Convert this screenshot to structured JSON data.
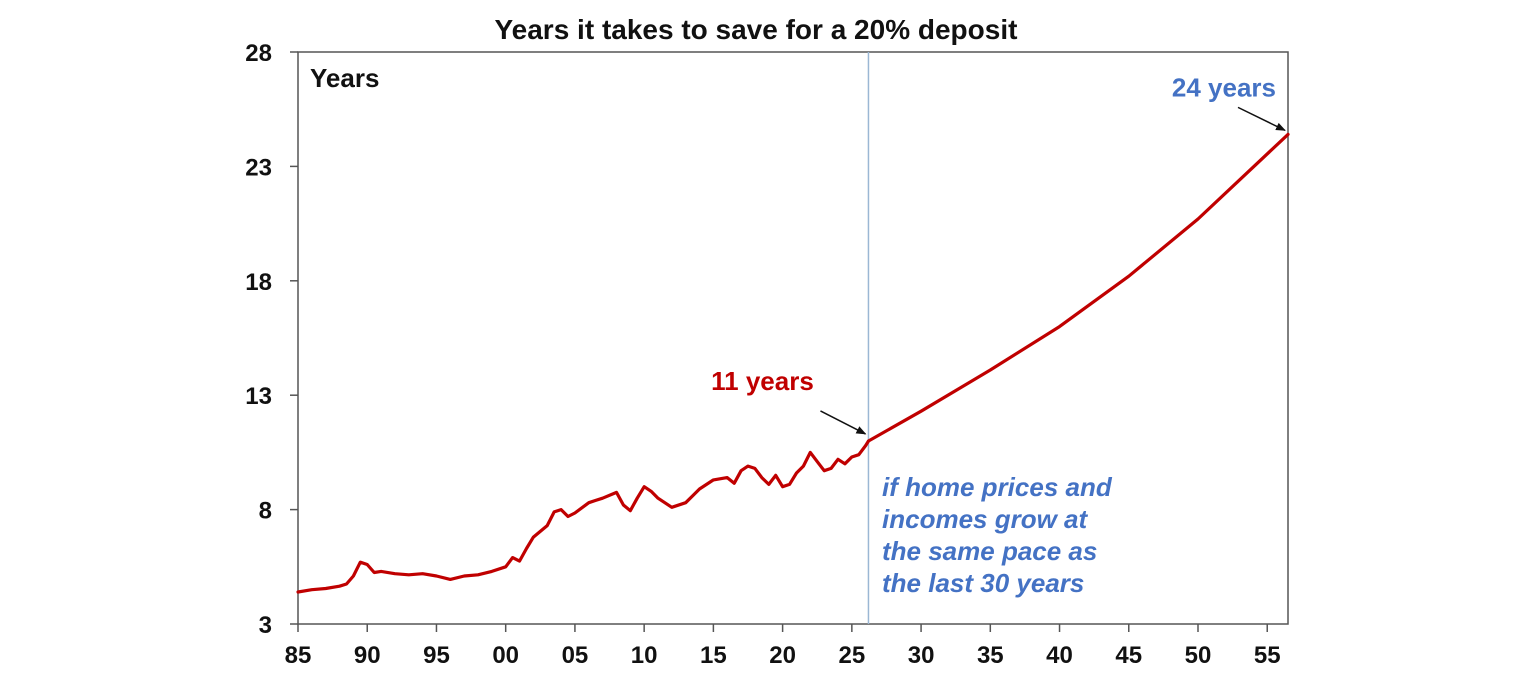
{
  "chart_data": {
    "type": "line",
    "title": "Years it takes to save for a 20% deposit",
    "ylabel": "Years",
    "xlabel": "",
    "xlim": [
      1985,
      2056.5
    ],
    "ylim": [
      3,
      28
    ],
    "x_ticks": [
      1985,
      1990,
      1995,
      2000,
      2005,
      2010,
      2015,
      2020,
      2025,
      2030,
      2035,
      2040,
      2045,
      2050,
      2055
    ],
    "x_tick_labels": [
      "85",
      "90",
      "95",
      "00",
      "05",
      "10",
      "15",
      "20",
      "25",
      "30",
      "35",
      "40",
      "45",
      "50",
      "55"
    ],
    "y_ticks": [
      3,
      8,
      13,
      18,
      23,
      28
    ],
    "y_tick_labels": [
      "3",
      "8",
      "13",
      "18",
      "23",
      "28"
    ],
    "grid": false,
    "colors": {
      "series": "#c00000",
      "annotation_blue": "#4472c4",
      "divider": "#9bb7d4"
    },
    "divider_x": 2026.2,
    "series": [
      {
        "color": "#c00000",
        "segment": "historical",
        "x": [
          1985.0,
          1986.0,
          1987.0,
          1988.0,
          1988.5,
          1989.0,
          1989.5,
          1990.0,
          1990.5,
          1991.0,
          1992.0,
          1993.0,
          1994.0,
          1995.0,
          1996.0,
          1997.0,
          1998.0,
          1999.0,
          2000.0,
          2000.5,
          2001.0,
          2001.5,
          2002.0,
          2003.0,
          2003.5,
          2004.0,
          2004.5,
          2005.0,
          2006.0,
          2006.5,
          2007.0,
          2008.0,
          2008.5,
          2009.0,
          2009.5,
          2010.0,
          2010.5,
          2011.0,
          2012.0,
          2013.0,
          2013.5,
          2014.0,
          2015.0,
          2016.0,
          2016.5,
          2017.0,
          2017.5,
          2018.0,
          2018.5,
          2019.0,
          2019.5,
          2020.0,
          2020.5,
          2021.0,
          2021.5,
          2022.0,
          2022.5,
          2023.0,
          2023.5,
          2024.0,
          2024.5,
          2025.0,
          2025.5,
          2026.0,
          2026.2
        ],
        "y": [
          4.4,
          4.5,
          4.55,
          4.65,
          4.75,
          5.1,
          5.7,
          5.6,
          5.25,
          5.3,
          5.2,
          5.15,
          5.2,
          5.1,
          4.95,
          5.1,
          5.15,
          5.3,
          5.5,
          5.9,
          5.75,
          6.3,
          6.8,
          7.3,
          7.9,
          8.0,
          7.7,
          7.85,
          8.3,
          8.4,
          8.5,
          8.75,
          8.2,
          7.95,
          8.5,
          9.0,
          8.8,
          8.5,
          8.1,
          8.3,
          8.6,
          8.9,
          9.3,
          9.4,
          9.15,
          9.7,
          9.9,
          9.8,
          9.4,
          9.1,
          9.5,
          9.0,
          9.1,
          9.6,
          9.9,
          10.5,
          10.1,
          9.7,
          9.8,
          10.2,
          10.0,
          10.3,
          10.4,
          10.8,
          11.0
        ]
      },
      {
        "color": "#c00000",
        "segment": "projection",
        "x": [
          2026.2,
          2030,
          2035,
          2040,
          2045,
          2050,
          2056.5
        ],
        "y": [
          11.0,
          12.3,
          14.1,
          16.0,
          18.2,
          20.7,
          24.4
        ]
      }
    ],
    "annotations": [
      {
        "text": "11 years",
        "color": "#c00000",
        "target_x": 2026.2,
        "target_y": 11.0
      },
      {
        "text": "24 years",
        "color": "#4472c4",
        "target_x": 2056.5,
        "target_y": 24.4
      }
    ],
    "note_lines": [
      "if home prices and",
      "incomes grow at",
      "the same pace as",
      "the last 30 years"
    ]
  }
}
